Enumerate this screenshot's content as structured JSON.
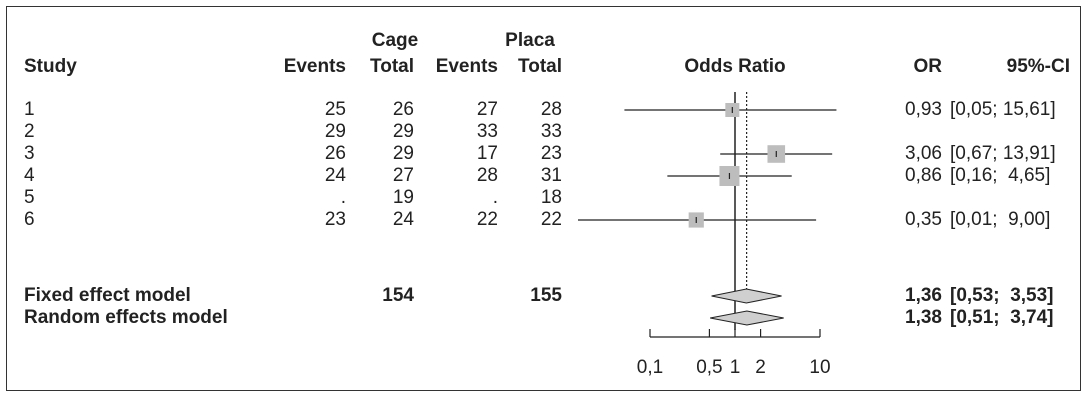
{
  "chart_data": {
    "type": "forest",
    "title": "",
    "headers": {
      "study": "Study",
      "group1": "Cage",
      "group2": "Placa",
      "events": "Events",
      "total": "Total",
      "axis_title": "Odds Ratio",
      "or": "OR",
      "ci": "95%-CI"
    },
    "studies": [
      {
        "label": "1",
        "events1": "25",
        "total1": "26",
        "events2": "27",
        "total2": "28",
        "or_text": "0,93",
        "ci_text": "[0,05; 15,61]",
        "or": 0.93,
        "lower": 0.05,
        "upper": 15.61,
        "weight": 0.5
      },
      {
        "label": "2",
        "events1": "29",
        "total1": "29",
        "events2": "33",
        "total2": "33",
        "or_text": "",
        "ci_text": "",
        "or": null,
        "lower": null,
        "upper": null,
        "weight": 0
      },
      {
        "label": "3",
        "events1": "26",
        "total1": "29",
        "events2": "17",
        "total2": "23",
        "or_text": "3,06",
        "ci_text": "[0,67; 13,91]",
        "or": 3.06,
        "lower": 0.67,
        "upper": 13.91,
        "weight": 0.8
      },
      {
        "label": "4",
        "events1": "24",
        "total1": "27",
        "events2": "28",
        "total2": "31",
        "or_text": "0,86",
        "ci_text": "[0,16;  4,65]",
        "or": 0.86,
        "lower": 0.16,
        "upper": 4.65,
        "weight": 1.0
      },
      {
        "label": "5",
        "events1": ".",
        "total1": "19",
        "events2": ".",
        "total2": "18",
        "or_text": "",
        "ci_text": "",
        "or": null,
        "lower": null,
        "upper": null,
        "weight": 0
      },
      {
        "label": "6",
        "events1": "23",
        "total1": "24",
        "events2": "22",
        "total2": "22",
        "or_text": "0,35",
        "ci_text": "[0,01;  9,00]",
        "or": 0.35,
        "lower": 0.01,
        "upper": 9.0,
        "weight": 0.6
      }
    ],
    "summaries": [
      {
        "label": "Fixed effect model",
        "total1": "154",
        "total2": "155",
        "or_text": "1,36",
        "ci_text": "[0,53;  3,53]",
        "or": 1.36,
        "lower": 0.53,
        "upper": 3.53
      },
      {
        "label": "Random effects model",
        "total1": "",
        "total2": "",
        "or_text": "1,38",
        "ci_text": "[0,51;  3,74]",
        "or": 1.38,
        "lower": 0.51,
        "upper": 3.74
      }
    ],
    "x_scale": "log",
    "x_ticks": [
      0.1,
      0.5,
      1,
      2,
      10
    ],
    "x_tick_labels": [
      "0,1",
      "0,5",
      "1",
      "2",
      "10"
    ],
    "reference_line": 1,
    "pooled_line": 1.37,
    "colors": {
      "box": "#bdbdbd",
      "line": "#222222",
      "diamond": "#cfcfcf"
    }
  }
}
